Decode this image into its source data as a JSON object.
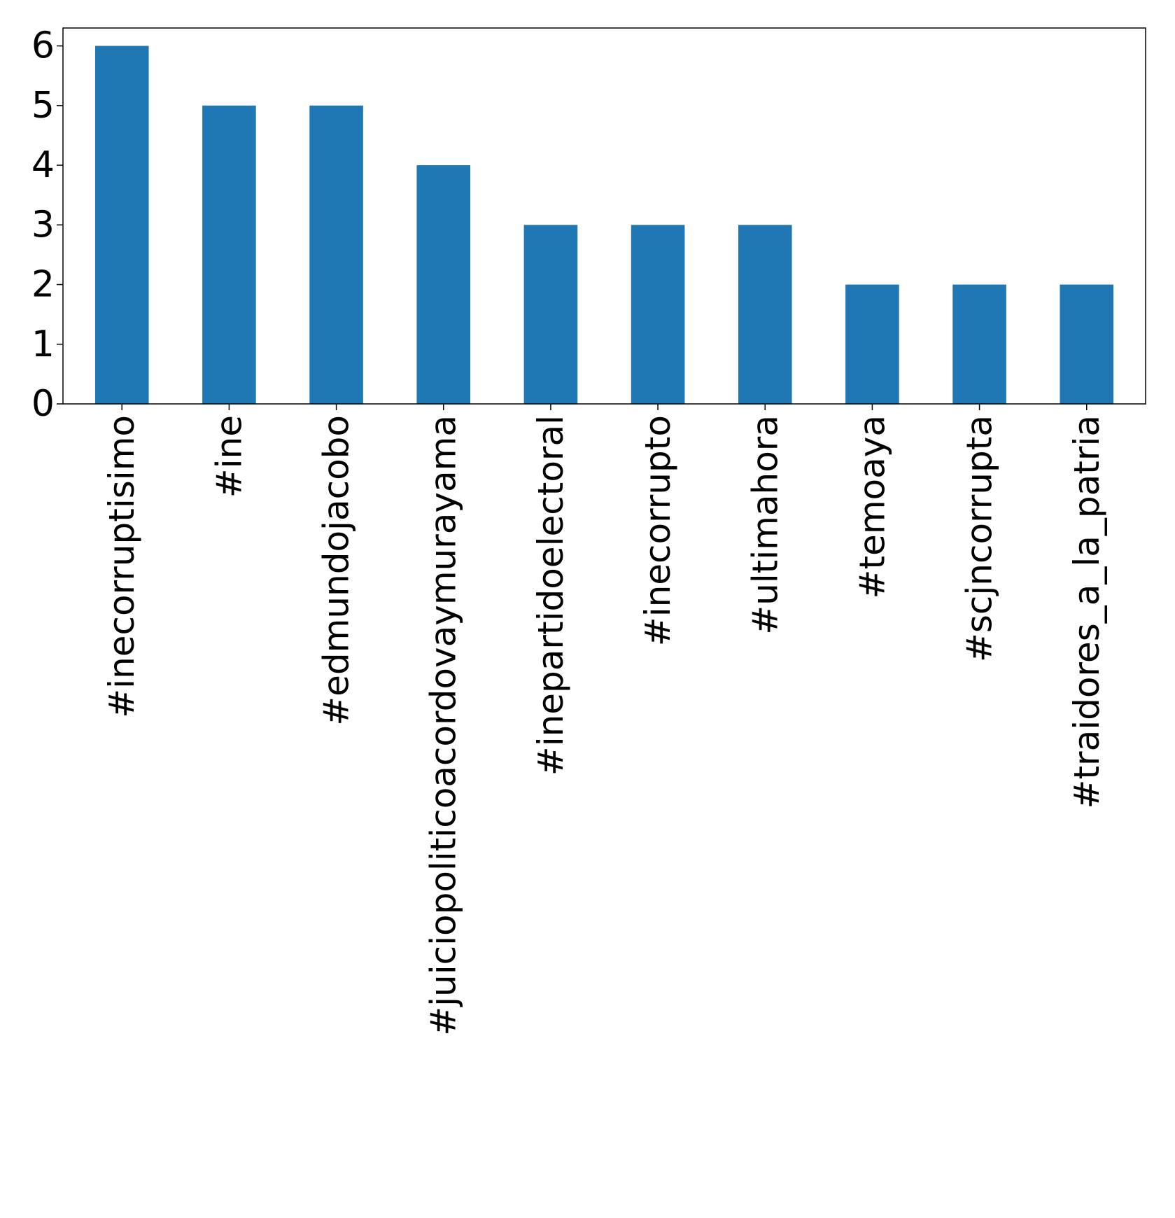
{
  "chart_data": {
    "type": "bar",
    "categories": [
      "#inecorruptisimo",
      "#ine",
      "#edmundojacobo",
      "#juiciopoliticoacordovaymurayama",
      "#inepartidoelectoral",
      "#inecorrupto",
      "#ultimahora",
      "#temoaya",
      "#scjncorrupta",
      "#traidores_a_la_patria"
    ],
    "values": [
      6,
      5,
      5,
      4,
      3,
      3,
      3,
      2,
      2,
      2
    ],
    "title": "",
    "xlabel": "",
    "ylabel": "",
    "ylim": [
      0,
      6.3
    ],
    "yticks": [
      "0",
      "1",
      "2",
      "3",
      "4",
      "5",
      "6"
    ],
    "grid": false,
    "bar_color": "#1f77b4"
  }
}
